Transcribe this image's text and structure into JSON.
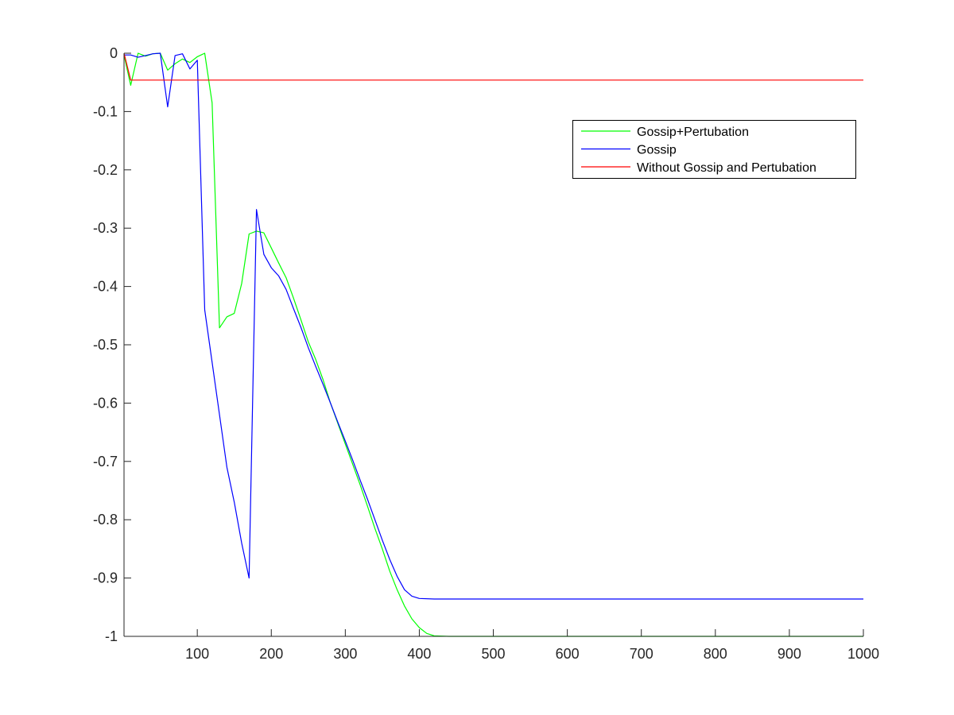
{
  "chart_data": {
    "type": "line",
    "title": "",
    "xlabel": "",
    "ylabel": "",
    "xlim": [
      1,
      1000
    ],
    "ylim": [
      -1,
      0
    ],
    "xticks": [
      100,
      200,
      300,
      400,
      500,
      600,
      700,
      800,
      900,
      1000
    ],
    "xtick_labels": [
      "100",
      "200",
      "300",
      "400",
      "500",
      "600",
      "700",
      "800",
      "900",
      "1000"
    ],
    "yticks": [
      0,
      -0.1,
      -0.2,
      -0.3,
      -0.4,
      -0.5,
      -0.6,
      -0.7,
      -0.8,
      -0.9,
      -1
    ],
    "ytick_labels": [
      "0",
      "-0.1",
      "-0.2",
      "-0.3",
      "-0.4",
      "-0.5",
      "-0.6",
      "-0.7",
      "-0.8",
      "-0.9",
      "-1"
    ],
    "grid": false,
    "legend_position": "top-right",
    "series": [
      {
        "name": "Gossip+Pertubation",
        "color": "#00ff00",
        "points": [
          [
            1,
            -0.003
          ],
          [
            10,
            -0.055
          ],
          [
            20,
            0.0
          ],
          [
            30,
            -0.005
          ],
          [
            40,
            -0.001
          ],
          [
            50,
            0.0
          ],
          [
            60,
            -0.029
          ],
          [
            70,
            -0.018
          ],
          [
            80,
            -0.01
          ],
          [
            90,
            -0.016
          ],
          [
            100,
            -0.006
          ],
          [
            110,
            0.0
          ],
          [
            120,
            -0.085
          ],
          [
            130,
            -0.471
          ],
          [
            140,
            -0.452
          ],
          [
            150,
            -0.446
          ],
          [
            160,
            -0.395
          ],
          [
            170,
            -0.31
          ],
          [
            180,
            -0.305
          ],
          [
            190,
            -0.308
          ],
          [
            200,
            -0.334
          ],
          [
            210,
            -0.36
          ],
          [
            220,
            -0.385
          ],
          [
            230,
            -0.42
          ],
          [
            240,
            -0.457
          ],
          [
            250,
            -0.495
          ],
          [
            260,
            -0.525
          ],
          [
            270,
            -0.56
          ],
          [
            280,
            -0.6
          ],
          [
            290,
            -0.635
          ],
          [
            300,
            -0.67
          ],
          [
            310,
            -0.705
          ],
          [
            320,
            -0.74
          ],
          [
            330,
            -0.777
          ],
          [
            340,
            -0.815
          ],
          [
            350,
            -0.85
          ],
          [
            360,
            -0.888
          ],
          [
            370,
            -0.92
          ],
          [
            380,
            -0.948
          ],
          [
            390,
            -0.97
          ],
          [
            400,
            -0.985
          ],
          [
            410,
            -0.995
          ],
          [
            420,
            -0.999
          ],
          [
            440,
            -1.0
          ],
          [
            500,
            -1.0
          ],
          [
            600,
            -1.0
          ],
          [
            700,
            -1.0
          ],
          [
            800,
            -1.0
          ],
          [
            900,
            -1.0
          ],
          [
            1000,
            -1.0
          ]
        ]
      },
      {
        "name": "Gossip",
        "color": "#0000ff",
        "points": [
          [
            1,
            -0.003
          ],
          [
            10,
            -0.003
          ],
          [
            20,
            -0.007
          ],
          [
            30,
            -0.004
          ],
          [
            40,
            -0.001
          ],
          [
            50,
            0.0
          ],
          [
            60,
            -0.092
          ],
          [
            70,
            -0.004
          ],
          [
            80,
            -0.001
          ],
          [
            90,
            -0.027
          ],
          [
            100,
            -0.012
          ],
          [
            110,
            -0.44
          ],
          [
            120,
            -0.53
          ],
          [
            130,
            -0.62
          ],
          [
            140,
            -0.71
          ],
          [
            150,
            -0.77
          ],
          [
            160,
            -0.84
          ],
          [
            170,
            -0.9
          ],
          [
            180,
            -0.268
          ],
          [
            190,
            -0.345
          ],
          [
            200,
            -0.368
          ],
          [
            210,
            -0.382
          ],
          [
            220,
            -0.405
          ],
          [
            230,
            -0.438
          ],
          [
            240,
            -0.47
          ],
          [
            250,
            -0.505
          ],
          [
            260,
            -0.537
          ],
          [
            270,
            -0.568
          ],
          [
            280,
            -0.6
          ],
          [
            290,
            -0.633
          ],
          [
            300,
            -0.665
          ],
          [
            310,
            -0.698
          ],
          [
            320,
            -0.732
          ],
          [
            330,
            -0.765
          ],
          [
            340,
            -0.8
          ],
          [
            350,
            -0.835
          ],
          [
            360,
            -0.868
          ],
          [
            370,
            -0.897
          ],
          [
            380,
            -0.92
          ],
          [
            390,
            -0.931
          ],
          [
            400,
            -0.935
          ],
          [
            420,
            -0.936
          ],
          [
            500,
            -0.936
          ],
          [
            600,
            -0.936
          ],
          [
            700,
            -0.936
          ],
          [
            800,
            -0.936
          ],
          [
            900,
            -0.936
          ],
          [
            1000,
            -0.936
          ]
        ]
      },
      {
        "name": "Without Gossip and Pertubation",
        "color": "#ff0000",
        "points": [
          [
            1,
            0.0
          ],
          [
            10,
            -0.046
          ],
          [
            1000,
            -0.046
          ]
        ]
      }
    ]
  }
}
